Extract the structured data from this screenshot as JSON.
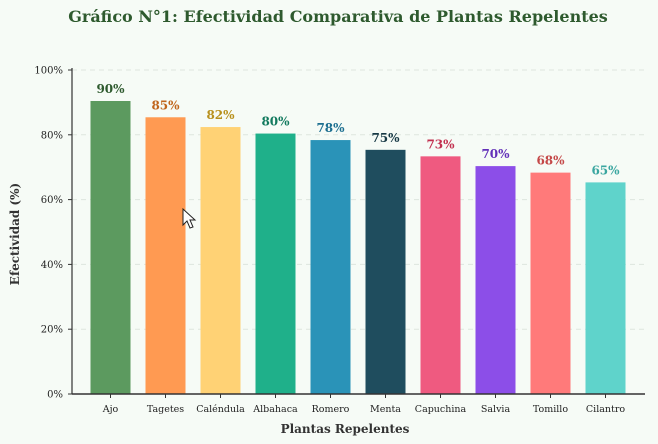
{
  "chart_data": {
    "type": "bar",
    "title": "Gráfico N°1: Efectividad Comparativa de Plantas Repelentes",
    "xlabel": "Plantas Repelentes",
    "ylabel": "Efectividad (%)",
    "ylim": [
      0,
      100
    ],
    "yticks": [
      0,
      20,
      40,
      60,
      80,
      100
    ],
    "ytick_labels": [
      "0%",
      "20%",
      "40%",
      "60%",
      "80%",
      "100%"
    ],
    "grid": true,
    "categories": [
      "Ajo",
      "Tagetes",
      "Caléndula",
      "Albahaca",
      "Romero",
      "Menta",
      "Capuchina",
      "Salvia",
      "Tomillo",
      "Cilantro"
    ],
    "values": [
      90,
      85,
      82,
      80,
      78,
      75,
      73,
      70,
      68,
      65
    ],
    "data_labels": [
      "90%",
      "85%",
      "82%",
      "80%",
      "78%",
      "75%",
      "73%",
      "70%",
      "68%",
      "65%"
    ],
    "bar_colors": [
      "#5c9a5f",
      "#ff9a52",
      "#ffd275",
      "#1fb08a",
      "#2a93b8",
      "#1f4d5e",
      "#ef5a80",
      "#8c4ee8",
      "#ff7a7a",
      "#5fd3cb"
    ],
    "label_colors": [
      "#2e5a2e",
      "#c0651c",
      "#b8901c",
      "#127a5e",
      "#1c6f90",
      "#163844",
      "#c2304f",
      "#6230b8",
      "#c44848",
      "#3aa6a0"
    ]
  },
  "colors": {
    "background": "#f6fbf6",
    "title": "#2e5a2e",
    "grid": "#dde6de",
    "axis": "#333333"
  }
}
